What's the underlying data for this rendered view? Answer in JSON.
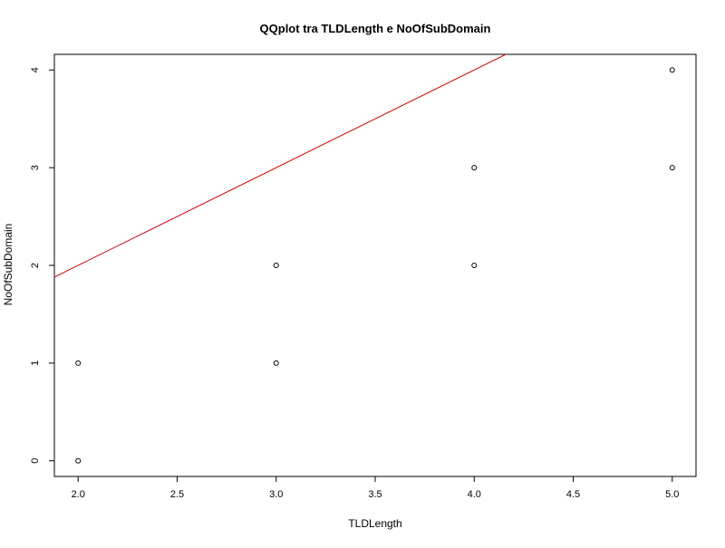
{
  "chart_data": {
    "type": "scatter",
    "title": "QQplot tra TLDLength e NoOfSubDomain",
    "xlabel": "TLDLength",
    "ylabel": "NoOfSubDomain",
    "xlim": [
      1.88,
      5.12
    ],
    "ylim": [
      -0.16,
      4.16
    ],
    "xticks": [
      "2.0",
      "2.5",
      "3.0",
      "3.5",
      "4.0",
      "4.5",
      "5.0"
    ],
    "yticks": [
      "0",
      "1",
      "2",
      "3",
      "4"
    ],
    "grid": false,
    "points": [
      {
        "x": 2,
        "y": 0
      },
      {
        "x": 2,
        "y": 1
      },
      {
        "x": 3,
        "y": 1
      },
      {
        "x": 3,
        "y": 2
      },
      {
        "x": 4,
        "y": 2
      },
      {
        "x": 4,
        "y": 3
      },
      {
        "x": 5,
        "y": 3
      },
      {
        "x": 5,
        "y": 4
      }
    ],
    "reference_line": {
      "intercept": 0,
      "slope": 1,
      "color": "#cc0000"
    },
    "point_color": "#000000"
  }
}
